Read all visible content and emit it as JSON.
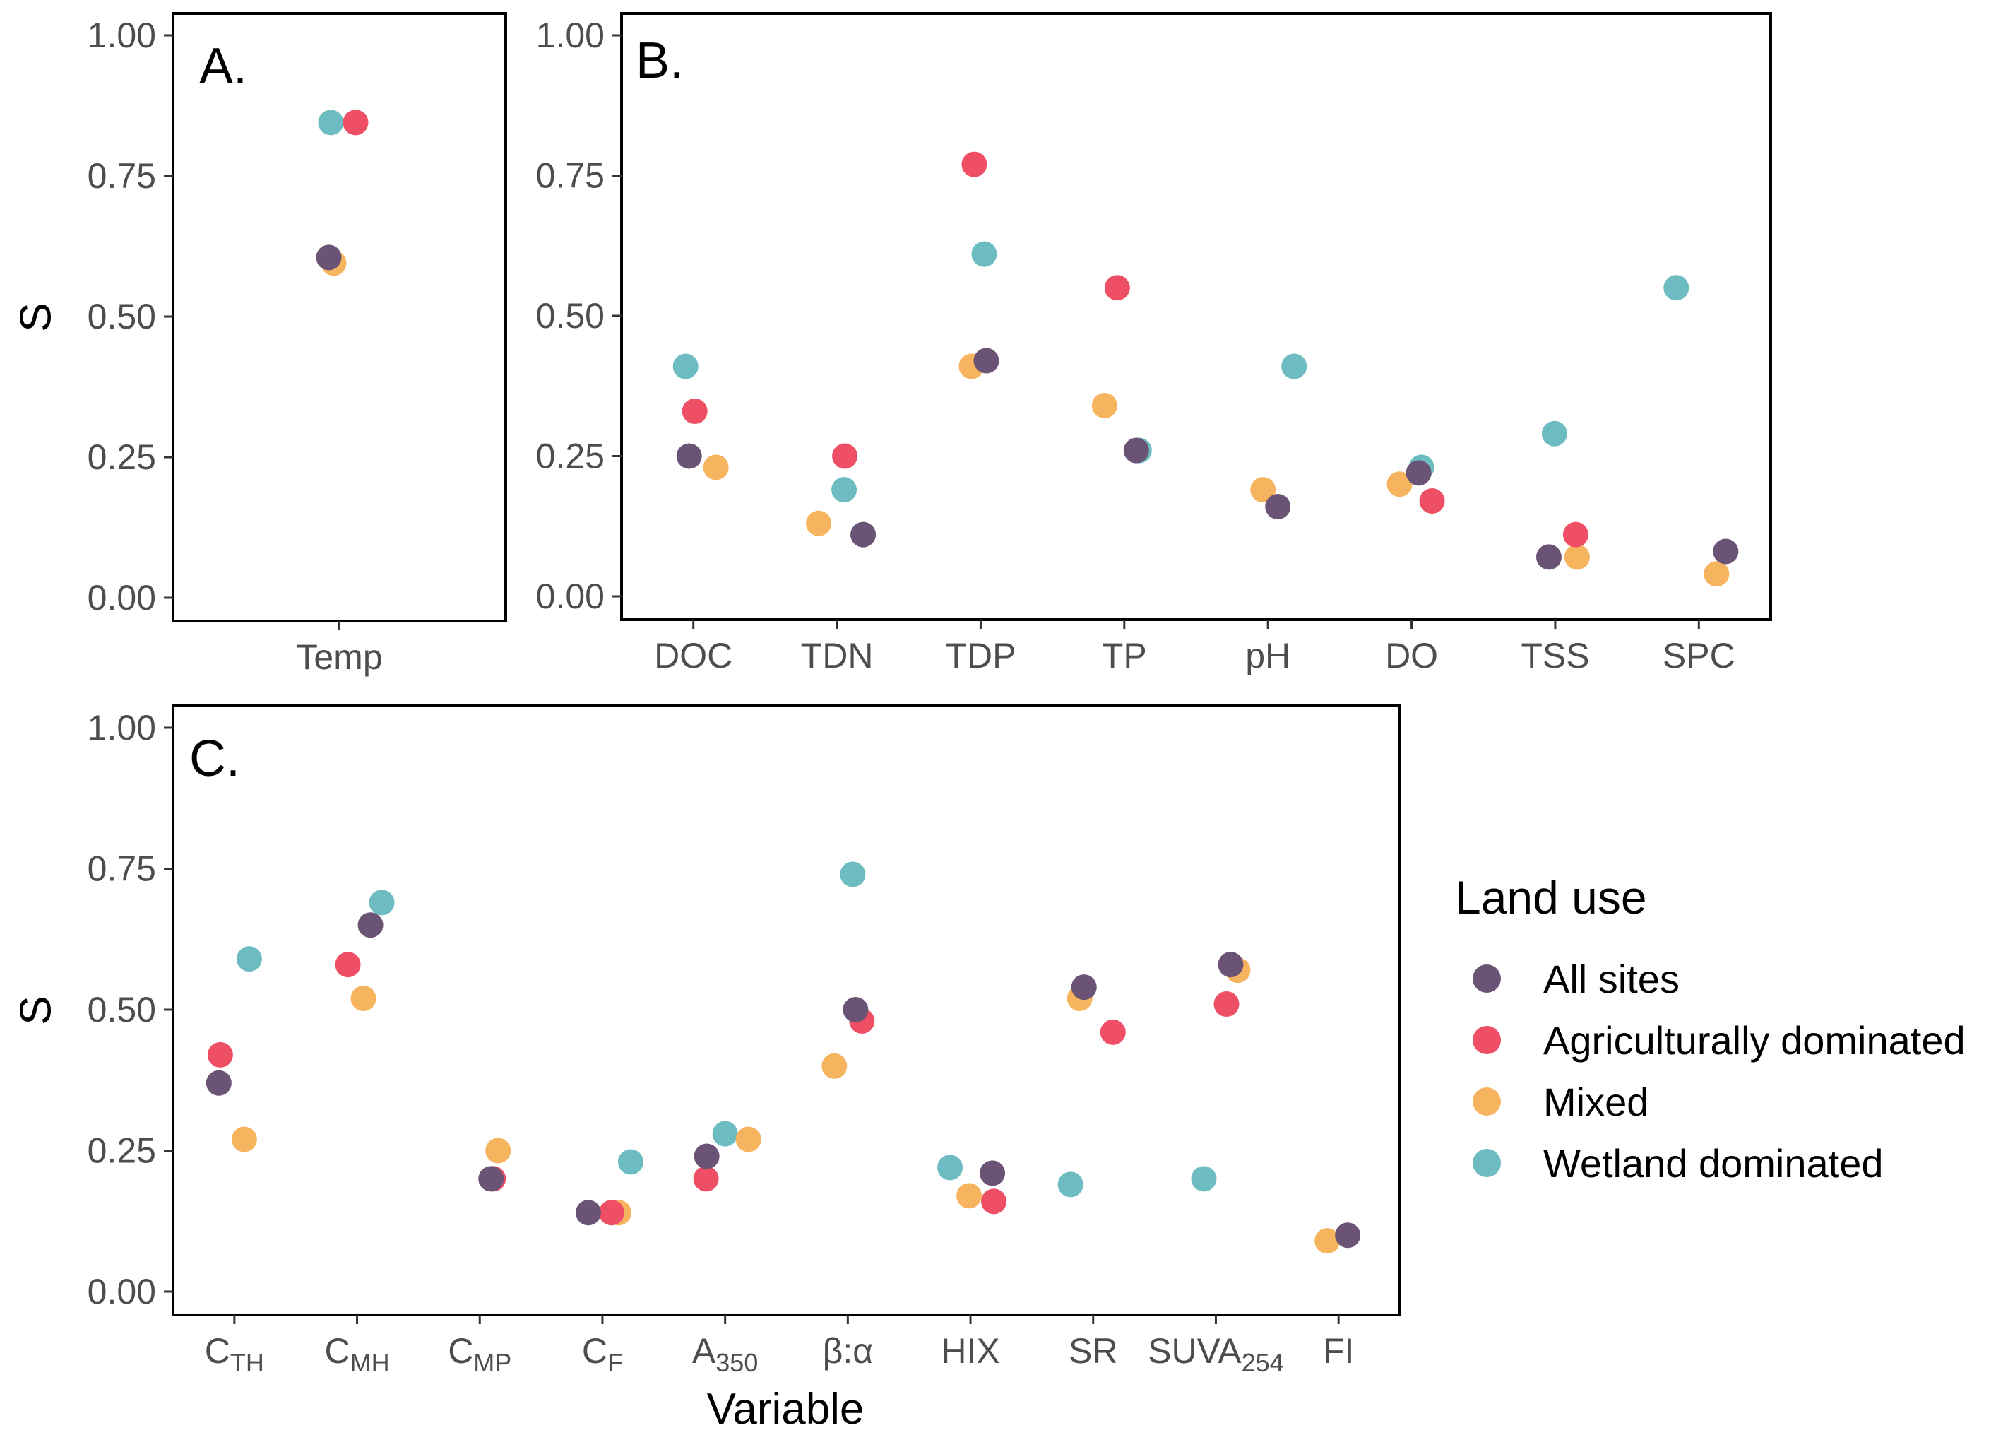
{
  "colors": {
    "All sites": "#6a5374",
    "Agriculturally dominated": "#ef4f64",
    "Mixed": "#f6b45f",
    "Wetland dominated": "#6cbcc1"
  },
  "legend": {
    "title": "Land use",
    "entries": [
      "All sites",
      "Agriculturally dominated",
      "Mixed",
      "Wetland dominated"
    ]
  },
  "y_axis_title": "S",
  "x_axis_title": "Variable",
  "chart_data": [
    {
      "panel": "A.",
      "type": "scatter",
      "ylabel": "S",
      "xlabel": "",
      "ylim": [
        0,
        1
      ],
      "yticks": [
        "0.00",
        "0.25",
        "0.50",
        "0.75",
        "1.00"
      ],
      "categories": [
        {
          "id": "Temp",
          "label": "Temp"
        }
      ],
      "series": [
        {
          "name": "All sites",
          "values": [
            0.605
          ]
        },
        {
          "name": "Agriculturally dominated",
          "values": [
            0.845
          ]
        },
        {
          "name": "Mixed",
          "values": [
            0.595
          ]
        },
        {
          "name": "Wetland dominated",
          "values": [
            0.845
          ]
        }
      ]
    },
    {
      "panel": "B.",
      "type": "scatter",
      "ylabel": "",
      "xlabel": "",
      "ylim": [
        0,
        1
      ],
      "yticks": [
        "0.00",
        "0.25",
        "0.50",
        "0.75",
        "1.00"
      ],
      "categories": [
        {
          "id": "DOC",
          "label": "DOC"
        },
        {
          "id": "TDN",
          "label": "TDN"
        },
        {
          "id": "TDP",
          "label": "TDP"
        },
        {
          "id": "TP",
          "label": "TP"
        },
        {
          "id": "pH",
          "label": "pH"
        },
        {
          "id": "DO",
          "label": "DO"
        },
        {
          "id": "TSS",
          "label": "TSS"
        },
        {
          "id": "SPC",
          "label": "SPC"
        }
      ],
      "series": [
        {
          "name": "All sites",
          "values": [
            0.25,
            0.11,
            0.42,
            0.26,
            0.16,
            0.22,
            0.07,
            0.08
          ]
        },
        {
          "name": "Agriculturally dominated",
          "values": [
            0.33,
            0.25,
            0.77,
            0.55,
            null,
            0.17,
            0.11,
            null
          ]
        },
        {
          "name": "Mixed",
          "values": [
            0.23,
            0.13,
            0.41,
            0.34,
            0.19,
            0.2,
            0.07,
            0.04
          ]
        },
        {
          "name": "Wetland dominated",
          "values": [
            0.41,
            0.19,
            0.61,
            0.26,
            0.41,
            0.23,
            0.29,
            0.55
          ]
        }
      ]
    },
    {
      "panel": "C.",
      "type": "scatter",
      "ylabel": "S",
      "xlabel": "Variable",
      "ylim": [
        0,
        1
      ],
      "yticks": [
        "0.00",
        "0.25",
        "0.50",
        "0.75",
        "1.00"
      ],
      "categories": [
        {
          "id": "CTH",
          "label": "C",
          "sub": "TH"
        },
        {
          "id": "CMH",
          "label": "C",
          "sub": "MH"
        },
        {
          "id": "CMP",
          "label": "C",
          "sub": "MP"
        },
        {
          "id": "CF",
          "label": "C",
          "sub": "F"
        },
        {
          "id": "A350",
          "label": "A",
          "sub": "350"
        },
        {
          "id": "beta_alpha",
          "label": "β:α"
        },
        {
          "id": "HIX",
          "label": "HIX"
        },
        {
          "id": "SR",
          "label": "SR"
        },
        {
          "id": "SUVA254",
          "label": "SUVA",
          "sub": "254"
        },
        {
          "id": "FI",
          "label": "FI"
        }
      ],
      "series": [
        {
          "name": "All sites",
          "values": [
            0.37,
            0.65,
            0.2,
            0.14,
            0.24,
            0.5,
            0.21,
            0.54,
            0.58,
            0.1
          ]
        },
        {
          "name": "Agriculturally dominated",
          "values": [
            0.42,
            0.58,
            0.2,
            0.14,
            0.2,
            0.48,
            0.16,
            0.46,
            0.51,
            null
          ]
        },
        {
          "name": "Mixed",
          "values": [
            0.27,
            0.52,
            0.25,
            0.14,
            0.27,
            0.4,
            0.17,
            0.52,
            0.57,
            0.09
          ]
        },
        {
          "name": "Wetland dominated",
          "values": [
            0.59,
            0.69,
            null,
            0.23,
            0.28,
            0.74,
            0.22,
            0.19,
            0.2,
            null
          ]
        }
      ]
    }
  ]
}
